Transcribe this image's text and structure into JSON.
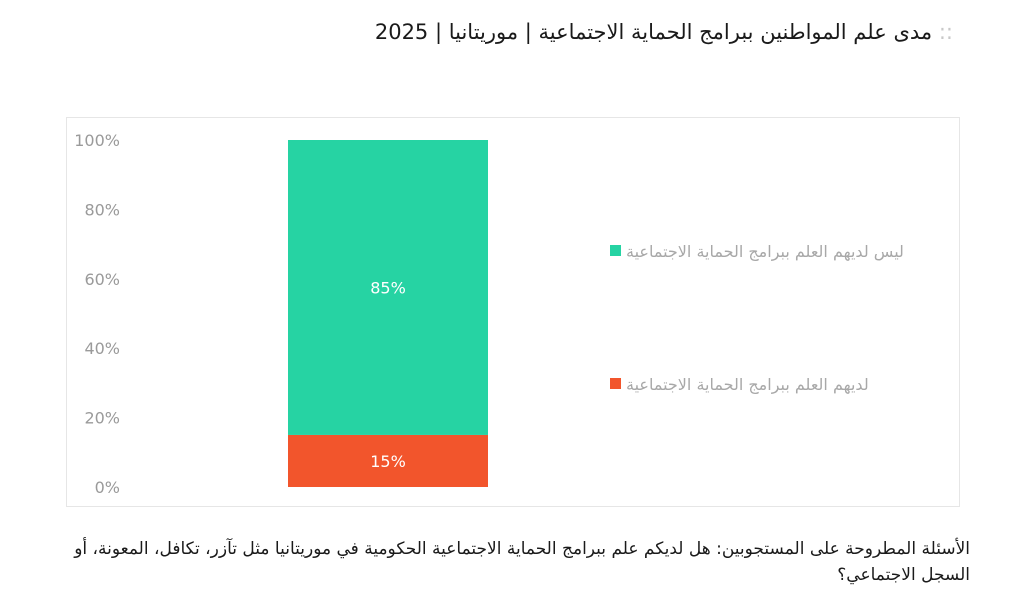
{
  "header": {
    "title_prefix": "::",
    "title": "مدى علم المواطنين ببرامج الحماية الاجتماعية | موريتانيا | 2025"
  },
  "footer": {
    "question": "الأسئلة المطروحة على المستجوبين: هل لديكم علم ببرامج الحماية الاجتماعية الحكومية في موريتانيا مثل تآزر، تكافل، المعونة، أو السجل الاجتماعي؟"
  },
  "colors": {
    "not_aware": "#26d3a3",
    "aware": "#f2552c"
  },
  "chart_data": {
    "type": "bar",
    "stacked": true,
    "categories": [
      ""
    ],
    "series": [
      {
        "name": "لديهم العلم ببرامج الحماية الاجتماعية",
        "values": [
          15
        ],
        "label": "15%",
        "color": "#f2552c"
      },
      {
        "name": "ليس لديهم العلم ببرامج الحماية الاجتماعية",
        "values": [
          85
        ],
        "label": "85%",
        "color": "#26d3a3"
      }
    ],
    "ylim": [
      0,
      100
    ],
    "yticks": [
      "0%",
      "20%",
      "40%",
      "60%",
      "80%",
      "100%"
    ],
    "legend": "right",
    "grid": false
  }
}
